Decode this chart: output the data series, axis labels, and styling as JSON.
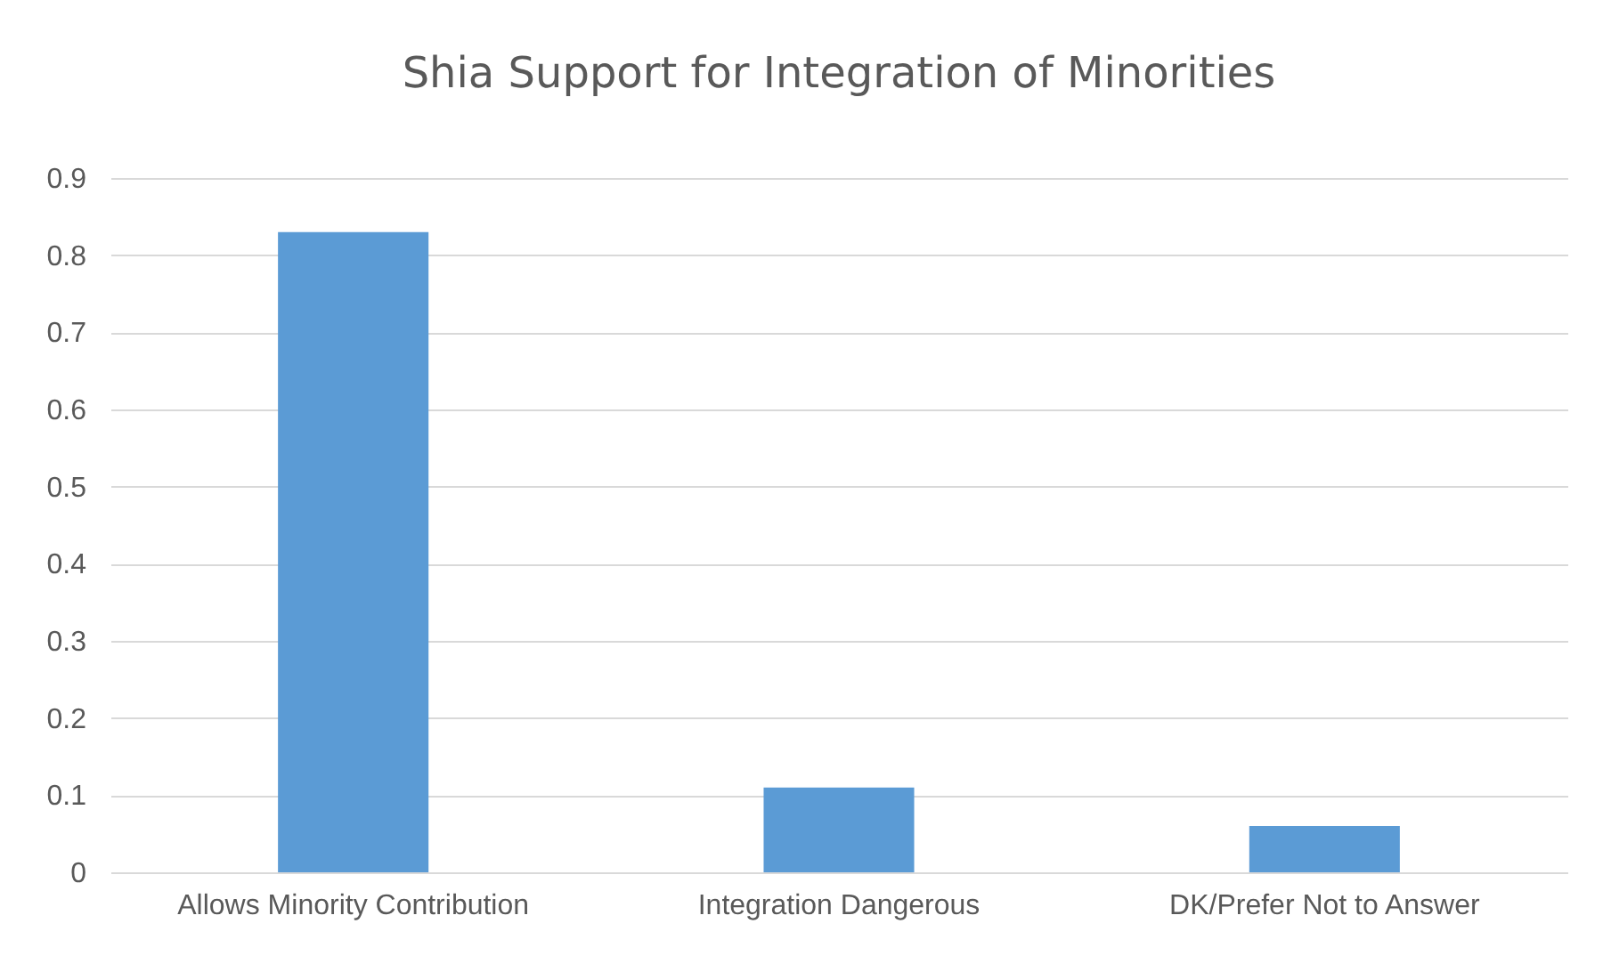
{
  "chart_data": {
    "type": "bar",
    "title": "Shia Support for Integration of Minorities",
    "categories": [
      "Allows Minority Contribution",
      "Integration Dangerous",
      "DK/Prefer Not to Answer"
    ],
    "values": [
      0.83,
      0.11,
      0.06
    ],
    "color": "#5b9bd5",
    "ylim": [
      0,
      0.9
    ],
    "yticks": [
      0,
      0.1,
      0.2,
      0.3,
      0.4,
      0.5,
      0.6,
      0.7,
      0.8,
      0.9
    ],
    "grid": "y"
  }
}
